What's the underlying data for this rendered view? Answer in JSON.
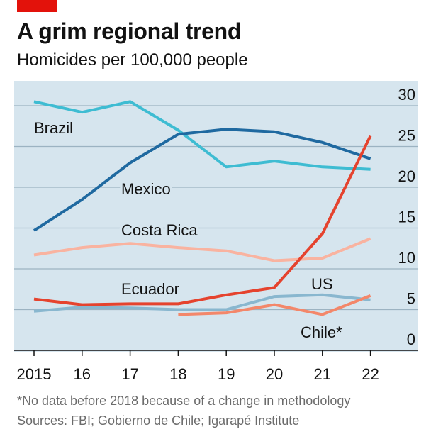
{
  "header": {
    "title": "A grim regional trend",
    "subtitle": "Homicides per 100,000 people"
  },
  "footer": {
    "note": "*No data before 2018 because of a change in methodology",
    "sources": "Sources: FBI; Gobierno de Chile; Igarapé Institute"
  },
  "colors": {
    "brand_red": "#e3120b",
    "plot_bg": "#d6e5ee",
    "grid": "#9cb3c2",
    "Brazil": "#3ebcd2",
    "Mexico": "#1f69a0",
    "Costa Rica": "#f9b3a0",
    "Ecuador": "#e5432e",
    "US": "#89b7cf",
    "Chile": "#f3876a"
  },
  "chart_data": {
    "type": "line",
    "title": "A grim regional trend",
    "subtitle": "Homicides per 100,000 people",
    "x_tick_labels": [
      "2015",
      "16",
      "17",
      "18",
      "19",
      "20",
      "21",
      "22"
    ],
    "y_tick_labels": [
      "0",
      "5",
      "10",
      "15",
      "20",
      "25",
      "30"
    ],
    "ylim": [
      0,
      30
    ],
    "y_axis_side": "right",
    "grid": true,
    "series": [
      {
        "name": "Brazil",
        "x": [
          2015,
          2016,
          2017,
          2018,
          2019,
          2020,
          2021,
          2022
        ],
        "values": [
          30.5,
          29.2,
          30.5,
          27.0,
          22.5,
          23.2,
          22.5,
          22.2
        ]
      },
      {
        "name": "Mexico",
        "x": [
          2015,
          2016,
          2017,
          2018,
          2019,
          2020,
          2021,
          2022
        ],
        "values": [
          14.7,
          18.5,
          23.0,
          26.5,
          27.1,
          26.8,
          25.5,
          23.5
        ]
      },
      {
        "name": "Costa Rica",
        "x": [
          2015,
          2016,
          2017,
          2018,
          2019,
          2020,
          2021,
          2022
        ],
        "values": [
          11.7,
          12.6,
          13.1,
          12.6,
          12.2,
          11.0,
          11.3,
          13.7
        ]
      },
      {
        "name": "Ecuador",
        "x": [
          2015,
          2016,
          2017,
          2018,
          2019,
          2020,
          2021,
          2022
        ],
        "values": [
          6.3,
          5.6,
          5.7,
          5.7,
          6.8,
          7.7,
          14.3,
          26.3
        ]
      },
      {
        "name": "US",
        "x": [
          2015,
          2016,
          2017,
          2018,
          2019,
          2020,
          2021,
          2022
        ],
        "values": [
          4.8,
          5.3,
          5.2,
          5.0,
          5.0,
          6.6,
          6.8,
          6.2
        ]
      },
      {
        "name": "Chile*",
        "x": [
          2018,
          2019,
          2020,
          2021,
          2022
        ],
        "values": [
          4.4,
          4.6,
          5.6,
          4.4,
          6.7
        ]
      }
    ]
  }
}
